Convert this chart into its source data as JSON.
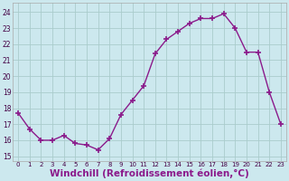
{
  "x": [
    0,
    1,
    2,
    3,
    4,
    5,
    6,
    7,
    8,
    9,
    10,
    11,
    12,
    13,
    14,
    15,
    16,
    17,
    18,
    19,
    20,
    21,
    22,
    23
  ],
  "y": [
    17.7,
    16.7,
    16.0,
    16.0,
    16.3,
    15.8,
    15.7,
    15.4,
    16.1,
    17.6,
    18.5,
    19.4,
    21.4,
    22.3,
    22.8,
    23.3,
    23.6,
    23.6,
    23.9,
    23.0,
    21.5,
    21.5,
    19.0,
    17.0
  ],
  "line_color": "#8b1a8b",
  "marker": "+",
  "marker_size": 4,
  "marker_linewidth": 1.2,
  "background_color": "#cce8ee",
  "grid_color": "#aacccc",
  "xlabel": "Windchill (Refroidissement éolien,°C)",
  "xlabel_fontsize": 7.5,
  "yticks": [
    15,
    16,
    17,
    18,
    19,
    20,
    21,
    22,
    23,
    24
  ],
  "xticks": [
    0,
    1,
    2,
    3,
    4,
    5,
    6,
    7,
    8,
    9,
    10,
    11,
    12,
    13,
    14,
    15,
    16,
    17,
    18,
    19,
    20,
    21,
    22,
    23
  ],
  "ylim": [
    14.7,
    24.6
  ],
  "xlim": [
    -0.5,
    23.5
  ]
}
